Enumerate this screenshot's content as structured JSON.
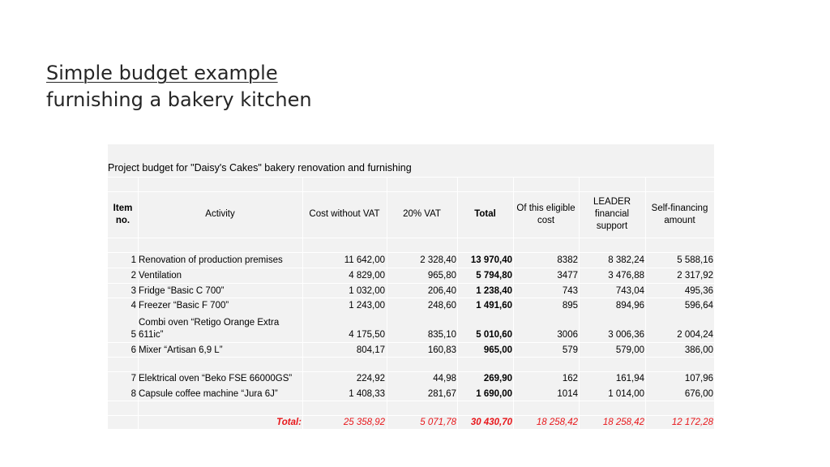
{
  "slide": {
    "title_line1": "Simple budget example",
    "title_line2": "furnishing a bakery kitchen"
  },
  "table": {
    "caption": "Project budget for \"Daisy's Cakes\" bakery renovation and furnishing",
    "headers": {
      "item": "Item no.",
      "activity": "Activity",
      "cost": "Cost without VAT",
      "vat": "20% VAT",
      "total": "Total",
      "eligible": "Of this eligible cost",
      "leader": "LEADER financial support",
      "self": "Self-financing amount"
    },
    "rows": [
      {
        "no": "1",
        "activity": "Renovation of production premises",
        "cost": "11 642,00",
        "vat": "2 328,40",
        "total": "13 970,40",
        "eligible": "8382",
        "leader": "8 382,24",
        "self": "5 588,16"
      },
      {
        "no": "2",
        "activity": "Ventilation",
        "cost": "4 829,00",
        "vat": "965,80",
        "total": "5 794,80",
        "eligible": "3477",
        "leader": "3 476,88",
        "self": "2 317,92"
      },
      {
        "no": "3",
        "activity": "Fridge “Basic C 700”",
        "cost": "1 032,00",
        "vat": "206,40",
        "total": "1 238,40",
        "eligible": "743",
        "leader": "743,04",
        "self": "495,36"
      },
      {
        "no": "4",
        "activity": "Freezer “Basic F 700”",
        "cost": "1 243,00",
        "vat": "248,60",
        "total": "1 491,60",
        "eligible": "895",
        "leader": "894,96",
        "self": "596,64"
      },
      {
        "no": "5",
        "activity_line1": "Combi oven “Retigo Orange Extra",
        "activity_line2": "611ic”",
        "cost": "4 175,50",
        "vat": "835,10",
        "total": "5 010,60",
        "eligible": "3006",
        "leader": "3 006,36",
        "self": "2 004,24"
      },
      {
        "no": "6",
        "activity": "Mixer “Artisan 6,9 L”",
        "cost": "804,17",
        "vat": "160,83",
        "total": "965,00",
        "eligible": "579",
        "leader": "579,00",
        "self": "386,00"
      },
      {
        "no": "7",
        "activity": "Elektrical oven “Beko FSE 66000GS”",
        "cost": "224,92",
        "vat": "44,98",
        "total": "269,90",
        "eligible": "162",
        "leader": "161,94",
        "self": "107,96"
      },
      {
        "no": "8",
        "activity": "Capsule coffee machine “Jura 6J”",
        "cost": "1 408,33",
        "vat": "281,67",
        "total": "1 690,00",
        "eligible": "1014",
        "leader": "1 014,00",
        "self": "676,00"
      }
    ],
    "totals": {
      "label": "Total:",
      "cost": "25 358,92",
      "vat": "5 071,78",
      "total": "30 430,70",
      "eligible": "18 258,42",
      "leader": "18 258,42",
      "self": "12 172,28"
    }
  }
}
